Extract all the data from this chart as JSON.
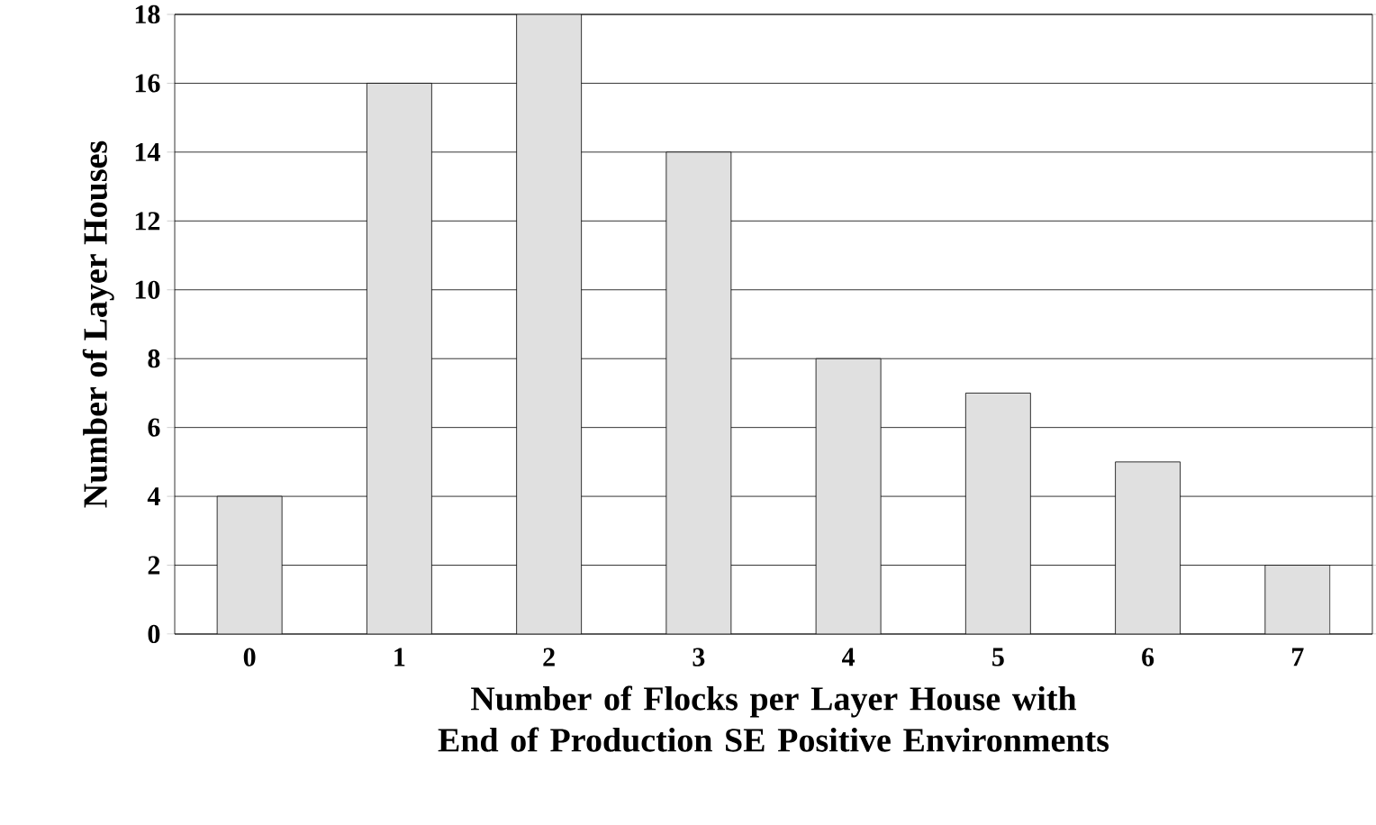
{
  "chart_data": {
    "type": "bar",
    "xlabel": "Number of Flocks per Layer House with End of Production SE Positive Environments",
    "ylabel": "Number of Layer Houses",
    "categories": [
      "0",
      "1",
      "2",
      "3",
      "4",
      "5",
      "6",
      "7"
    ],
    "values": [
      4,
      16,
      18,
      14,
      8,
      7,
      5,
      2
    ],
    "color": "#e0e0e0",
    "ylim": [
      0,
      18
    ],
    "yticks": [
      0,
      2,
      4,
      6,
      8,
      10,
      12,
      14,
      16,
      18
    ],
    "grid": "y"
  }
}
